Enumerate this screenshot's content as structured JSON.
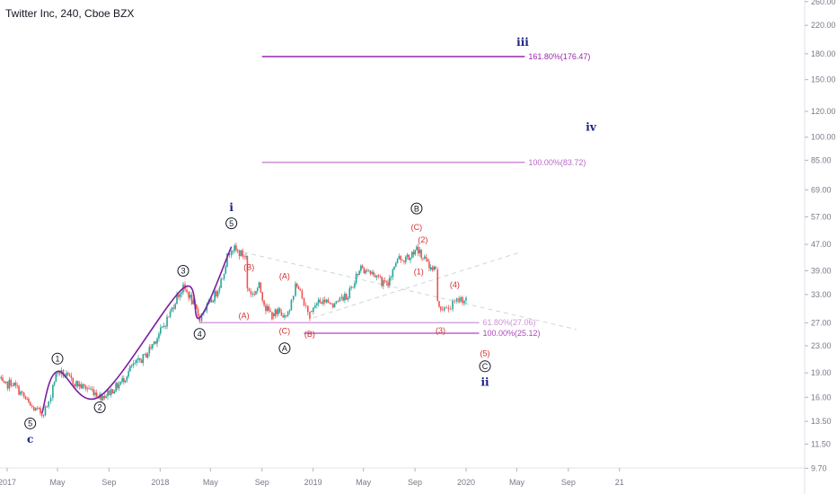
{
  "chart_data": {
    "type": "candlestick",
    "title": "Twitter Inc, 240, Cboe BZX",
    "y_scale": "log",
    "y_ticks": [
      "260.00",
      "220.00",
      "180.00",
      "150.00",
      "120.00",
      "100.00",
      "85.00",
      "69.00",
      "57.00",
      "47.00",
      "39.00",
      "33.00",
      "27.00",
      "23.00",
      "19.00",
      "16.00",
      "13.50",
      "11.50",
      "9.70"
    ],
    "x_ticks": [
      "2017",
      "May",
      "Sep",
      "2018",
      "May",
      "Sep",
      "2019",
      "May",
      "Sep",
      "2020",
      "May",
      "Sep",
      "21"
    ],
    "price_path": [
      [
        "2016-12-10",
        18.5
      ],
      [
        "2016-12-25",
        17.2
      ],
      [
        "2017-01-10",
        17.8
      ],
      [
        "2017-01-25",
        17.0
      ],
      [
        "2017-02-10",
        16.0
      ],
      [
        "2017-02-25",
        15.0
      ],
      [
        "2017-03-10",
        14.6
      ],
      [
        "2017-03-25",
        14.3
      ],
      [
        "2017-04-10",
        15.2
      ],
      [
        "2017-04-20",
        17.5
      ],
      [
        "2017-05-01",
        19.2
      ],
      [
        "2017-05-15",
        18.8
      ],
      [
        "2017-05-30",
        18.2
      ],
      [
        "2017-06-15",
        17.6
      ],
      [
        "2017-06-30",
        17.2
      ],
      [
        "2017-07-15",
        17.0
      ],
      [
        "2017-07-30",
        16.6
      ],
      [
        "2017-08-10",
        16.1
      ],
      [
        "2017-08-25",
        16.3
      ],
      [
        "2017-09-10",
        16.9
      ],
      [
        "2017-09-25",
        17.5
      ],
      [
        "2017-10-10",
        18.5
      ],
      [
        "2017-10-25",
        19.8
      ],
      [
        "2017-11-10",
        20.5
      ],
      [
        "2017-11-25",
        21.3
      ],
      [
        "2017-12-10",
        22.8
      ],
      [
        "2017-12-25",
        24.5
      ],
      [
        "2018-01-10",
        26.5
      ],
      [
        "2018-01-25",
        29.0
      ],
      [
        "2018-02-10",
        32.5
      ],
      [
        "2018-02-25",
        34.5
      ],
      [
        "2018-03-10",
        33.0
      ],
      [
        "2018-03-25",
        30.0
      ],
      [
        "2018-04-05",
        28.0
      ],
      [
        "2018-04-15",
        29.5
      ],
      [
        "2018-04-30",
        31.0
      ],
      [
        "2018-05-15",
        33.5
      ],
      [
        "2018-05-30",
        37.5
      ],
      [
        "2018-06-10",
        43.0
      ],
      [
        "2018-06-20",
        46.2
      ],
      [
        "2018-07-05",
        44.5
      ],
      [
        "2018-07-25",
        43.0
      ],
      [
        "2018-07-28",
        34.5
      ],
      [
        "2018-08-10",
        33.0
      ],
      [
        "2018-08-25",
        35.0
      ],
      [
        "2018-09-10",
        30.0
      ],
      [
        "2018-09-25",
        28.5
      ],
      [
        "2018-10-10",
        29.5
      ],
      [
        "2018-10-25",
        27.8
      ],
      [
        "2018-11-10",
        31.0
      ],
      [
        "2018-11-20",
        35.5
      ],
      [
        "2018-12-01",
        33.5
      ],
      [
        "2018-12-15",
        30.0
      ],
      [
        "2018-12-24",
        28.5
      ],
      [
        "2019-01-10",
        31.0
      ],
      [
        "2019-01-25",
        32.0
      ],
      [
        "2019-02-10",
        30.5
      ],
      [
        "2019-02-25",
        31.5
      ],
      [
        "2019-03-10",
        32.0
      ],
      [
        "2019-03-25",
        33.0
      ],
      [
        "2019-04-10",
        36.5
      ],
      [
        "2019-04-25",
        40.5
      ],
      [
        "2019-05-10",
        38.5
      ],
      [
        "2019-05-25",
        37.5
      ],
      [
        "2019-06-10",
        36.5
      ],
      [
        "2019-06-25",
        35.0
      ],
      [
        "2019-07-10",
        39.0
      ],
      [
        "2019-07-25",
        42.5
      ],
      [
        "2019-08-10",
        42.5
      ],
      [
        "2019-08-25",
        43.5
      ],
      [
        "2019-09-05",
        45.5
      ],
      [
        "2019-09-20",
        43.0
      ],
      [
        "2019-10-05",
        40.5
      ],
      [
        "2019-10-20",
        39.5
      ],
      [
        "2019-10-25",
        31.0
      ],
      [
        "2019-11-05",
        30.0
      ],
      [
        "2019-11-15",
        29.5
      ],
      [
        "2019-11-25",
        30.5
      ],
      [
        "2019-12-05",
        31.0
      ],
      [
        "2019-12-15",
        32.0
      ],
      [
        "2020-01-01",
        31.8
      ]
    ],
    "fibonacci": [
      {
        "label": "161.80%(176.47)",
        "price": 176.47,
        "start": "2018-09-01",
        "end": "2020-05-20",
        "color": "#9c27b0"
      },
      {
        "label": "100.00%(83.72)",
        "price": 83.72,
        "start": "2018-09-01",
        "end": "2020-05-20",
        "color": "#ba68c8"
      },
      {
        "label": "61.80%(27.06)",
        "price": 27.06,
        "start": "2018-04-05",
        "end": "2020-02-01",
        "color": "#ce93d8"
      },
      {
        "label": "100.00%(25.12)",
        "price": 25.12,
        "start": "2018-12-10",
        "end": "2020-02-01",
        "color": "#ab47bc"
      }
    ],
    "wave_labels": [
      {
        "text": "c",
        "date": "2017-02-25",
        "price": 11.9,
        "style": "big",
        "color": "#1a237e"
      },
      {
        "text": "5",
        "date": "2017-02-25",
        "price": 13.3,
        "style": "circle",
        "color": "#131722"
      },
      {
        "text": "1",
        "date": "2017-05-01",
        "price": 21.0,
        "style": "circle",
        "color": "#131722"
      },
      {
        "text": "2",
        "date": "2017-08-10",
        "price": 14.9,
        "style": "circle",
        "color": "#131722"
      },
      {
        "text": "3",
        "date": "2018-02-25",
        "price": 39.0,
        "style": "circle",
        "color": "#131722"
      },
      {
        "text": "4",
        "date": "2018-04-05",
        "price": 25.0,
        "style": "circle",
        "color": "#131722"
      },
      {
        "text": "i",
        "date": "2018-06-20",
        "price": 61.0,
        "style": "big",
        "color": "#1a237e"
      },
      {
        "text": "5",
        "date": "2018-06-20",
        "price": 54.5,
        "style": "circle",
        "color": "#131722"
      },
      {
        "text": "(B)",
        "date": "2018-08-01",
        "price": 40.0,
        "style": "red",
        "color": "#d32f2f"
      },
      {
        "text": "(A)",
        "date": "2018-10-25",
        "price": 37.5,
        "style": "red",
        "color": "#d32f2f"
      },
      {
        "text": "(A)",
        "date": "2018-07-20",
        "price": 28.4,
        "style": "red",
        "color": "#d32f2f"
      },
      {
        "text": "(C)",
        "date": "2018-10-25",
        "price": 25.5,
        "style": "red",
        "color": "#d32f2f"
      },
      {
        "text": "A",
        "date": "2018-10-25",
        "price": 22.6,
        "style": "circle",
        "color": "#131722"
      },
      {
        "text": "(B)",
        "date": "2018-12-24",
        "price": 25.0,
        "style": "red",
        "color": "#d32f2f"
      },
      {
        "text": "B",
        "date": "2019-09-05",
        "price": 60.5,
        "style": "circle",
        "color": "#131722"
      },
      {
        "text": "(C)",
        "date": "2019-09-05",
        "price": 53.0,
        "style": "red",
        "color": "#d32f2f"
      },
      {
        "text": "(2)",
        "date": "2019-09-20",
        "price": 48.5,
        "style": "red",
        "color": "#d32f2f"
      },
      {
        "text": "(1)",
        "date": "2019-09-10",
        "price": 38.7,
        "style": "red",
        "color": "#d32f2f"
      },
      {
        "text": "(4)",
        "date": "2019-12-05",
        "price": 35.3,
        "style": "red",
        "color": "#d32f2f"
      },
      {
        "text": "(3)",
        "date": "2019-11-01",
        "price": 25.6,
        "style": "red",
        "color": "#d32f2f"
      },
      {
        "text": "(5)",
        "date": "2020-02-15",
        "price": 21.8,
        "style": "red",
        "color": "#d32f2f"
      },
      {
        "text": "C",
        "date": "2020-02-15",
        "price": 19.9,
        "style": "circle",
        "color": "#131722"
      },
      {
        "text": "ii",
        "date": "2020-02-15",
        "price": 17.8,
        "style": "big",
        "color": "#1a237e"
      },
      {
        "text": "iii",
        "date": "2020-05-15",
        "price": 195.0,
        "style": "big",
        "color": "#1a237e"
      },
      {
        "text": "iv",
        "date": "2020-10-25",
        "price": 107.5,
        "style": "big",
        "color": "#1a237e"
      }
    ],
    "wave_curve": [
      [
        "2017-03-25",
        14.3
      ],
      [
        "2017-05-01",
        19.2
      ],
      [
        "2017-08-10",
        16.1
      ],
      [
        "2018-02-25",
        34.5
      ],
      [
        "2018-04-05",
        28.0
      ],
      [
        "2018-06-20",
        46.2
      ]
    ],
    "dashed_lines": [
      [
        [
          "2018-07-01",
          45.0
        ],
        [
          "2020-09-20",
          25.8
        ]
      ],
      [
        [
          "2019-01-01",
          28.0
        ],
        [
          "2020-05-10",
          44.5
        ]
      ]
    ],
    "colors": {
      "up": "#26a69a",
      "down": "#ef5350",
      "wave_curve": "#7b1fa2"
    }
  }
}
